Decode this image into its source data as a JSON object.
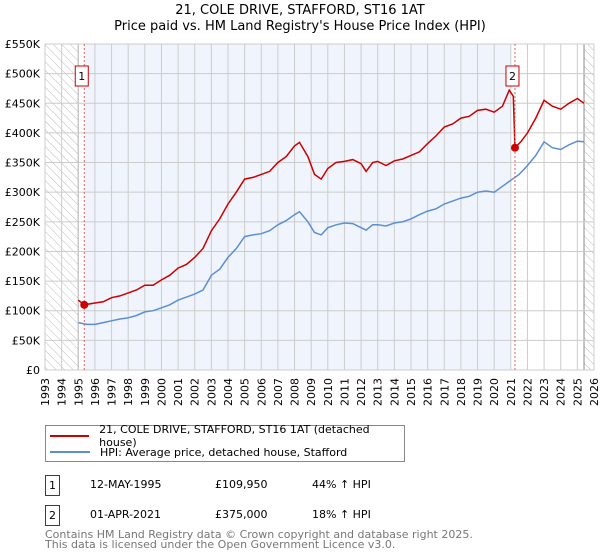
{
  "title": "21, COLE DRIVE, STAFFORD, ST16 1AT",
  "subtitle": "Price paid vs. HM Land Registry's House Price Index (HPI)",
  "chart_data": {
    "type": "line",
    "title": "21, COLE DRIVE, STAFFORD, ST16 1AT",
    "subtitle": "Price paid vs. HM Land Registry's House Price Index (HPI)",
    "xlim": [
      1993,
      2026
    ],
    "ylim": [
      0,
      550000
    ],
    "grid": true,
    "x_ticks": [
      "1993",
      "1994",
      "1995",
      "1996",
      "1997",
      "1998",
      "1999",
      "2000",
      "2001",
      "2002",
      "2003",
      "2004",
      "2005",
      "2006",
      "2007",
      "2008",
      "2009",
      "2010",
      "2011",
      "2012",
      "2013",
      "2014",
      "2015",
      "2016",
      "2017",
      "2018",
      "2019",
      "2020",
      "2021",
      "2022",
      "2023",
      "2024",
      "2025",
      "2026"
    ],
    "y_ticks": [
      {
        "value": 0,
        "label": "£0"
      },
      {
        "value": 50000,
        "label": "£50K"
      },
      {
        "value": 100000,
        "label": "£100K"
      },
      {
        "value": 150000,
        "label": "£150K"
      },
      {
        "value": 200000,
        "label": "£200K"
      },
      {
        "value": 250000,
        "label": "£250K"
      },
      {
        "value": 300000,
        "label": "£300K"
      },
      {
        "value": 350000,
        "label": "£350K"
      },
      {
        "value": 400000,
        "label": "£400K"
      },
      {
        "value": 450000,
        "label": "£450K"
      },
      {
        "value": 500000,
        "label": "£500K"
      },
      {
        "value": 550000,
        "label": "£550K"
      }
    ],
    "hatched_ranges": [
      [
        1993,
        1995.0
      ],
      [
        2025.4,
        2026
      ]
    ],
    "shaded_range": [
      1995.36,
      2021.0
    ],
    "series": [
      {
        "name": "21, COLE DRIVE, STAFFORD, ST16 1AT (detached house)",
        "color": "#cc0000",
        "x": [
          1995.0,
          1995.36,
          1996,
          1996.5,
          1997,
          1997.5,
          1998,
          1998.5,
          1999,
          1999.5,
          2000,
          2000.5,
          2001,
          2001.5,
          2002,
          2002.5,
          2003,
          2003.5,
          2004,
          2004.5,
          2005,
          2005.5,
          2006,
          2006.5,
          2007,
          2007.5,
          2008,
          2008.3,
          2008.8,
          2009.2,
          2009.6,
          2010,
          2010.5,
          2011,
          2011.5,
          2012,
          2012.3,
          2012.7,
          2013,
          2013.5,
          2014,
          2014.5,
          2015,
          2015.5,
          2016,
          2016.5,
          2017,
          2017.5,
          2018,
          2018.5,
          2019,
          2019.5,
          2020,
          2020.5,
          2020.9,
          2021.15,
          2021.25,
          2021.6,
          2022,
          2022.5,
          2023,
          2023.5,
          2024,
          2024.5,
          2025,
          2025.4
        ],
        "y": [
          118000,
          109950,
          113000,
          115000,
          122000,
          125000,
          130000,
          135000,
          143000,
          143000,
          152000,
          160000,
          172000,
          178000,
          190000,
          205000,
          235000,
          255000,
          280000,
          300000,
          322000,
          325000,
          330000,
          335000,
          350000,
          360000,
          378000,
          384000,
          360000,
          330000,
          322000,
          340000,
          350000,
          352000,
          355000,
          348000,
          335000,
          350000,
          352000,
          345000,
          353000,
          356000,
          362000,
          368000,
          382000,
          395000,
          410000,
          415000,
          425000,
          428000,
          438000,
          440000,
          435000,
          445000,
          472000,
          462000,
          375000,
          385000,
          400000,
          425000,
          455000,
          445000,
          440000,
          450000,
          458000,
          450000
        ]
      },
      {
        "name": "HPI: Average price, detached house, Stafford",
        "color": "#5b8fd4",
        "x": [
          1995.0,
          1995.5,
          1996,
          1996.5,
          1997,
          1997.5,
          1998,
          1998.5,
          1999,
          1999.5,
          2000,
          2000.5,
          2001,
          2001.5,
          2002,
          2002.5,
          2003,
          2003.5,
          2004,
          2004.5,
          2005,
          2005.5,
          2006,
          2006.5,
          2007,
          2007.5,
          2008,
          2008.3,
          2008.8,
          2009.2,
          2009.6,
          2010,
          2010.5,
          2011,
          2011.5,
          2012,
          2012.3,
          2012.7,
          2013,
          2013.5,
          2014,
          2014.5,
          2015,
          2015.5,
          2016,
          2016.5,
          2017,
          2017.5,
          2018,
          2018.5,
          2019,
          2019.5,
          2020,
          2020.5,
          2021,
          2021.5,
          2022,
          2022.5,
          2023,
          2023.5,
          2024,
          2024.5,
          2025,
          2025.4
        ],
        "y": [
          80000,
          77000,
          77000,
          80000,
          83000,
          86000,
          88000,
          92000,
          98000,
          100000,
          105000,
          110000,
          118000,
          123000,
          128000,
          135000,
          160000,
          170000,
          190000,
          205000,
          225000,
          228000,
          230000,
          235000,
          245000,
          252000,
          262000,
          267000,
          250000,
          232000,
          228000,
          240000,
          245000,
          248000,
          247000,
          240000,
          236000,
          245000,
          245000,
          243000,
          248000,
          250000,
          255000,
          262000,
          268000,
          272000,
          280000,
          285000,
          290000,
          293000,
          300000,
          302000,
          300000,
          310000,
          320000,
          330000,
          345000,
          362000,
          385000,
          375000,
          372000,
          380000,
          386000,
          385000
        ]
      }
    ],
    "annotations": [
      {
        "label": "1",
        "x": 1995.36,
        "y": 109950
      },
      {
        "label": "2",
        "x": 2021.25,
        "y": 375000
      }
    ]
  },
  "legend": [
    {
      "label": "21, COLE DRIVE, STAFFORD, ST16 1AT (detached house)",
      "color": "#cc0000"
    },
    {
      "label": "HPI: Average price, detached house, Stafford",
      "color": "#5b8fd4"
    }
  ],
  "transactions": [
    {
      "num": "1",
      "date": "12-MAY-1995",
      "price": "£109,950",
      "hpi": "44% ↑ HPI"
    },
    {
      "num": "2",
      "date": "01-APR-2021",
      "price": "£375,000",
      "hpi": "18% ↑ HPI"
    }
  ],
  "footer": {
    "line1": "Contains HM Land Registry data © Crown copyright and database right 2025.",
    "line2": "This data is licensed under the Open Government Licence v3.0."
  }
}
